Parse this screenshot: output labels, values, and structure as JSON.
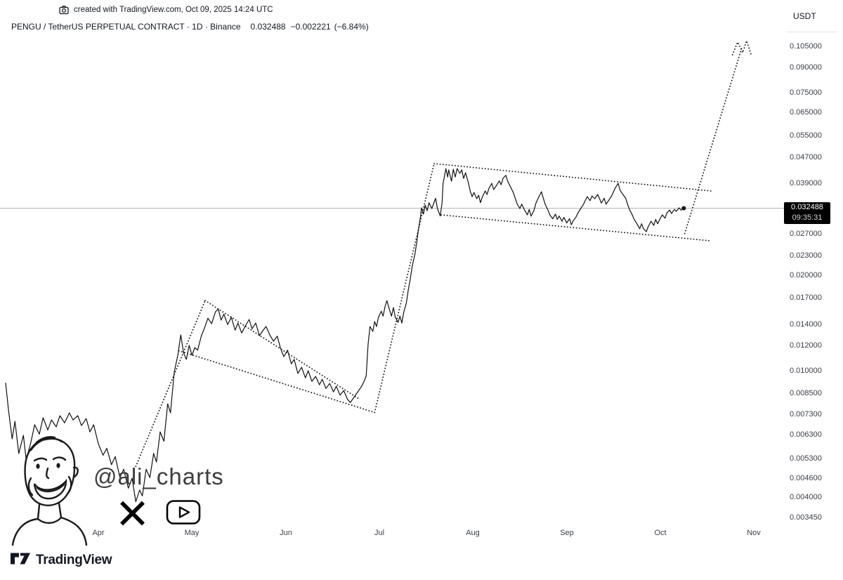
{
  "attribution": {
    "text": "created with TradingView.com, Oct 09, 2025 14:24 UTC"
  },
  "legend": {
    "symbol_title": "PENGU / TetherUS PERPETUAL CONTRACT · 1D · Binance",
    "last_price": "0.032488",
    "change": "−0.002221",
    "change_pct": "(−6.84%)"
  },
  "price_scale": {
    "currency_button": "USDT",
    "ticks": [
      "0.105000",
      "0.090000",
      "0.075000",
      "0.065000",
      "0.055000",
      "0.047000",
      "0.039000",
      "0.027000",
      "0.023000",
      "0.020000",
      "0.017000",
      "0.014000",
      "0.012000",
      "0.010000",
      "0.008500",
      "0.007300",
      "0.006300",
      "0.005300",
      "0.004600",
      "0.004000",
      "0.003450"
    ],
    "tick_values": [
      0.105,
      0.09,
      0.075,
      0.065,
      0.055,
      0.047,
      0.039,
      0.027,
      0.023,
      0.02,
      0.017,
      0.014,
      0.012,
      0.01,
      0.0085,
      0.0073,
      0.0063,
      0.0053,
      0.0046,
      0.004,
      0.00345
    ],
    "badge": {
      "price": "0.032488",
      "countdown": "09:35:31"
    }
  },
  "time_scale": {
    "labels": [
      "Apr",
      "May",
      "Jun",
      "Jul",
      "Aug",
      "Sep",
      "Oct",
      "Nov"
    ],
    "months": [
      4,
      5,
      6,
      7,
      8,
      9,
      10,
      11
    ]
  },
  "watermark": {
    "handle": "@ali_charts",
    "icons": [
      "face-drawing",
      "x-logo",
      "youtube-logo"
    ]
  },
  "footer": {
    "brand": "TradingView"
  },
  "colors": {
    "series": "#111111",
    "price_line_gray": "#b2b5be",
    "badge_bg": "#000000",
    "badge_text": "#ffffff",
    "text_primary": "#131722",
    "text_secondary": "#3a3e47",
    "divider": "#e0e3eb"
  },
  "chart_data": {
    "type": "line",
    "symbol": "PENGU / TetherUS PERPETUAL CONTRACT",
    "exchange": "Binance",
    "interval": "1D",
    "quote": "USDT",
    "y_scale": "log",
    "x_unit": "decimal month of 2025 (4 = Apr 1, 11 = Nov 1)",
    "x_range": [
      3.0,
      11.05
    ],
    "y_range": [
      0.00325,
      0.115
    ],
    "last": 0.032488,
    "price_line": 0.032488,
    "series": [
      [
        3.01,
        0.00917
      ],
      [
        3.04,
        0.00755
      ],
      [
        3.08,
        0.0061
      ],
      [
        3.11,
        0.00693
      ],
      [
        3.15,
        0.00549
      ],
      [
        3.2,
        0.00626
      ],
      [
        3.23,
        0.00524
      ],
      [
        3.28,
        0.00596
      ],
      [
        3.32,
        0.00676
      ],
      [
        3.37,
        0.00632
      ],
      [
        3.41,
        0.00711
      ],
      [
        3.46,
        0.00651
      ],
      [
        3.5,
        0.007
      ],
      [
        3.55,
        0.00666
      ],
      [
        3.59,
        0.00722
      ],
      [
        3.64,
        0.00685
      ],
      [
        3.69,
        0.00737
      ],
      [
        3.73,
        0.007
      ],
      [
        3.78,
        0.00722
      ],
      [
        3.82,
        0.00672
      ],
      [
        3.87,
        0.00707
      ],
      [
        3.91,
        0.00642
      ],
      [
        3.95,
        0.00676
      ],
      [
        4.0,
        0.00589
      ],
      [
        4.05,
        0.00542
      ],
      [
        4.09,
        0.0057
      ],
      [
        4.14,
        0.00506
      ],
      [
        4.18,
        0.00537
      ],
      [
        4.23,
        0.00461
      ],
      [
        4.27,
        0.0049
      ],
      [
        4.32,
        0.00427
      ],
      [
        4.36,
        0.00459
      ],
      [
        4.4,
        0.00387
      ],
      [
        4.44,
        0.00421
      ],
      [
        4.47,
        0.00404
      ],
      [
        4.51,
        0.0049
      ],
      [
        4.55,
        0.00461
      ],
      [
        4.59,
        0.00549
      ],
      [
        4.62,
        0.00516
      ],
      [
        4.66,
        0.00642
      ],
      [
        4.7,
        0.006
      ],
      [
        4.74,
        0.00787
      ],
      [
        4.77,
        0.00737
      ],
      [
        4.81,
        0.0099
      ],
      [
        4.85,
        0.01124
      ],
      [
        4.88,
        0.01297
      ],
      [
        4.91,
        0.0114
      ],
      [
        4.94,
        0.01086
      ],
      [
        4.97,
        0.01202
      ],
      [
        5.0,
        0.01119
      ],
      [
        5.03,
        0.01183
      ],
      [
        5.06,
        0.01161
      ],
      [
        5.1,
        0.0129
      ],
      [
        5.13,
        0.01356
      ],
      [
        5.17,
        0.01463
      ],
      [
        5.21,
        0.01407
      ],
      [
        5.25,
        0.01533
      ],
      [
        5.28,
        0.01565
      ],
      [
        5.31,
        0.01443
      ],
      [
        5.34,
        0.01507
      ],
      [
        5.38,
        0.01398
      ],
      [
        5.42,
        0.01472
      ],
      [
        5.46,
        0.01343
      ],
      [
        5.49,
        0.01413
      ],
      [
        5.53,
        0.01315
      ],
      [
        5.57,
        0.01385
      ],
      [
        5.61,
        0.0145
      ],
      [
        5.64,
        0.01356
      ],
      [
        5.68,
        0.01413
      ],
      [
        5.72,
        0.0129
      ],
      [
        5.76,
        0.01343
      ],
      [
        5.79,
        0.01378
      ],
      [
        5.83,
        0.01297
      ],
      [
        5.87,
        0.01239
      ],
      [
        5.91,
        0.01285
      ],
      [
        5.94,
        0.01189
      ],
      [
        5.98,
        0.01107
      ],
      [
        6.02,
        0.01161
      ],
      [
        6.06,
        0.01051
      ],
      [
        6.09,
        0.01086
      ],
      [
        6.13,
        0.00981
      ],
      [
        6.17,
        0.01025
      ],
      [
        6.21,
        0.0095
      ],
      [
        6.24,
        0.01
      ],
      [
        6.28,
        0.00926
      ],
      [
        6.32,
        0.0096
      ],
      [
        6.36,
        0.00903
      ],
      [
        6.39,
        0.0094
      ],
      [
        6.43,
        0.00879
      ],
      [
        6.47,
        0.00912
      ],
      [
        6.51,
        0.00858
      ],
      [
        6.54,
        0.00893
      ],
      [
        6.58,
        0.00838
      ],
      [
        6.62,
        0.00866
      ],
      [
        6.66,
        0.00813
      ],
      [
        6.69,
        0.00794
      ],
      [
        6.73,
        0.00826
      ],
      [
        6.77,
        0.00858
      ],
      [
        6.81,
        0.00893
      ],
      [
        6.84,
        0.00931
      ],
      [
        6.86,
        0.00965
      ],
      [
        6.88,
        0.01213
      ],
      [
        6.9,
        0.01378
      ],
      [
        6.93,
        0.0133
      ],
      [
        6.95,
        0.01428
      ],
      [
        6.97,
        0.01378
      ],
      [
        6.99,
        0.01472
      ],
      [
        7.02,
        0.0154
      ],
      [
        7.04,
        0.01486
      ],
      [
        7.06,
        0.01589
      ],
      [
        7.08,
        0.01663
      ],
      [
        7.11,
        0.01549
      ],
      [
        7.13,
        0.01486
      ],
      [
        7.15,
        0.01581
      ],
      [
        7.17,
        0.01472
      ],
      [
        7.2,
        0.0142
      ],
      [
        7.22,
        0.01486
      ],
      [
        7.24,
        0.01413
      ],
      [
        7.26,
        0.01526
      ],
      [
        7.29,
        0.01646
      ],
      [
        7.31,
        0.01805
      ],
      [
        7.33,
        0.01941
      ],
      [
        7.35,
        0.02133
      ],
      [
        7.38,
        0.0233
      ],
      [
        7.4,
        0.02545
      ],
      [
        7.42,
        0.02815
      ],
      [
        7.44,
        0.03068
      ],
      [
        7.45,
        0.03257
      ],
      [
        7.47,
        0.03111
      ],
      [
        7.49,
        0.0332
      ],
      [
        7.51,
        0.03191
      ],
      [
        7.53,
        0.0338
      ],
      [
        7.56,
        0.0324
      ],
      [
        7.58,
        0.03358
      ],
      [
        7.6,
        0.0349
      ],
      [
        7.62,
        0.0324
      ],
      [
        7.65,
        0.03068
      ],
      [
        7.67,
        0.0338
      ],
      [
        7.68,
        0.0389
      ],
      [
        7.7,
        0.0416
      ],
      [
        7.71,
        0.0433
      ],
      [
        7.73,
        0.04073
      ],
      [
        7.74,
        0.0429
      ],
      [
        7.77,
        0.0395
      ],
      [
        7.79,
        0.0431
      ],
      [
        7.81,
        0.04073
      ],
      [
        7.83,
        0.0433
      ],
      [
        7.86,
        0.0418
      ],
      [
        7.88,
        0.0429
      ],
      [
        7.9,
        0.04032
      ],
      [
        7.92,
        0.042
      ],
      [
        7.95,
        0.0391
      ],
      [
        7.97,
        0.0368
      ],
      [
        7.99,
        0.03532
      ],
      [
        8.01,
        0.0364
      ],
      [
        8.04,
        0.0348
      ],
      [
        8.06,
        0.0357
      ],
      [
        8.08,
        0.0338
      ],
      [
        8.1,
        0.03532
      ],
      [
        8.13,
        0.0368
      ],
      [
        8.15,
        0.0359
      ],
      [
        8.17,
        0.0375
      ],
      [
        8.2,
        0.0389
      ],
      [
        8.22,
        0.03717
      ],
      [
        8.25,
        0.0383
      ],
      [
        8.28,
        0.0396
      ],
      [
        8.3,
        0.0385
      ],
      [
        8.32,
        0.04032
      ],
      [
        8.35,
        0.04125
      ],
      [
        8.37,
        0.0395
      ],
      [
        8.4,
        0.0379
      ],
      [
        8.43,
        0.0364
      ],
      [
        8.45,
        0.035
      ],
      [
        8.47,
        0.03358
      ],
      [
        8.5,
        0.0324
      ],
      [
        8.52,
        0.03345
      ],
      [
        8.55,
        0.03205
      ],
      [
        8.58,
        0.03096
      ],
      [
        8.6,
        0.0322
      ],
      [
        8.62,
        0.03068
      ],
      [
        8.65,
        0.03191
      ],
      [
        8.67,
        0.03358
      ],
      [
        8.7,
        0.03516
      ],
      [
        8.73,
        0.0366
      ],
      [
        8.75,
        0.035
      ],
      [
        8.77,
        0.03345
      ],
      [
        8.8,
        0.03205
      ],
      [
        8.82,
        0.03096
      ],
      [
        8.85,
        0.0301
      ],
      [
        8.88,
        0.03111
      ],
      [
        8.9,
        0.02996
      ],
      [
        8.92,
        0.03068
      ],
      [
        8.95,
        0.02955
      ],
      [
        8.97,
        0.0304
      ],
      [
        9.0,
        0.0292
      ],
      [
        9.03,
        0.0301
      ],
      [
        9.05,
        0.02882
      ],
      [
        9.07,
        0.02968
      ],
      [
        9.1,
        0.03049
      ],
      [
        9.12,
        0.0314
      ],
      [
        9.15,
        0.0324
      ],
      [
        9.18,
        0.03345
      ],
      [
        9.2,
        0.03444
      ],
      [
        9.22,
        0.03532
      ],
      [
        9.25,
        0.0343
      ],
      [
        9.27,
        0.0355
      ],
      [
        9.3,
        0.0348
      ],
      [
        9.33,
        0.0359
      ],
      [
        9.35,
        0.0349
      ],
      [
        9.37,
        0.0337
      ],
      [
        9.4,
        0.0349
      ],
      [
        9.42,
        0.03345
      ],
      [
        9.45,
        0.03444
      ],
      [
        9.48,
        0.0355
      ],
      [
        9.5,
        0.0366
      ],
      [
        9.52,
        0.0377
      ],
      [
        9.55,
        0.0389
      ],
      [
        9.57,
        0.037
      ],
      [
        9.6,
        0.0359
      ],
      [
        9.63,
        0.0349
      ],
      [
        9.65,
        0.03345
      ],
      [
        9.67,
        0.0322
      ],
      [
        9.7,
        0.03096
      ],
      [
        9.72,
        0.02996
      ],
      [
        9.75,
        0.02902
      ],
      [
        9.78,
        0.028
      ],
      [
        9.8,
        0.02902
      ],
      [
        9.82,
        0.028
      ],
      [
        9.85,
        0.0274
      ],
      [
        9.87,
        0.0284
      ],
      [
        9.9,
        0.02955
      ],
      [
        9.93,
        0.02868
      ],
      [
        9.95,
        0.02996
      ],
      [
        9.97,
        0.02902
      ],
      [
        10.0,
        0.0302
      ],
      [
        10.02,
        0.03096
      ],
      [
        10.05,
        0.0302
      ],
      [
        10.07,
        0.0314
      ],
      [
        10.1,
        0.03205
      ],
      [
        10.12,
        0.03125
      ],
      [
        10.15,
        0.0322
      ],
      [
        10.17,
        0.03175
      ],
      [
        10.2,
        0.03257
      ],
      [
        10.22,
        0.03205
      ],
      [
        10.25,
        0.032488
      ]
    ],
    "annotations": {
      "style": "dotted",
      "lines": [
        {
          "name": "april-rally-line",
          "points": [
            [
              4.4,
              0.005
            ],
            [
              5.14,
              0.01664
            ]
          ]
        },
        {
          "name": "channel1-upper",
          "points": [
            [
              5.14,
              0.01664
            ],
            [
              6.79,
              0.00813
            ]
          ]
        },
        {
          "name": "channel1-lower",
          "points": [
            [
              4.86,
              0.01156
            ],
            [
              6.95,
              0.00739
            ]
          ]
        },
        {
          "name": "july-rally-line",
          "points": [
            [
              6.95,
              0.00739
            ],
            [
              7.585,
              0.04488
            ]
          ]
        },
        {
          "name": "channel2-upper",
          "points": [
            [
              7.585,
              0.04488
            ],
            [
              10.54,
              0.0368
            ]
          ]
        },
        {
          "name": "channel2-lower",
          "points": [
            [
              7.66,
              0.03096
            ],
            [
              10.54,
              0.02564
            ]
          ]
        },
        {
          "name": "projection-line",
          "points": [
            [
              10.26,
              0.02704
            ],
            [
              10.875,
              0.1052
            ]
          ]
        },
        {
          "name": "projection-top",
          "points": [
            [
              10.77,
              0.0988
            ],
            [
              10.825,
              0.1082
            ],
            [
              10.88,
              0.1003
            ],
            [
              10.92,
              0.1093
            ],
            [
              10.975,
              0.0979
            ]
          ]
        }
      ]
    }
  }
}
